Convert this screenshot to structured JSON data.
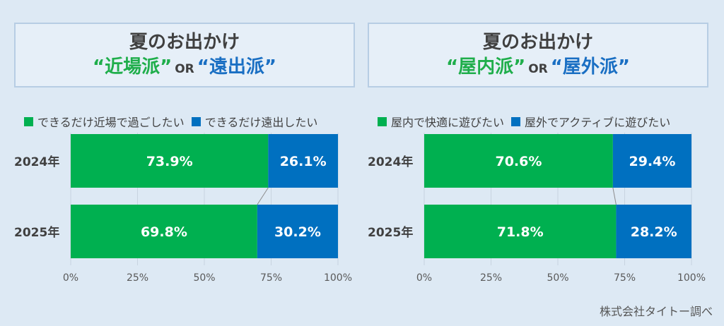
{
  "source_note": "株式会社タイトー調べ",
  "colors": {
    "green": "#00b050",
    "blue": "#0070c0",
    "title_green": "#1fae4b",
    "title_blue": "#1a6fc3",
    "text": "#404040"
  },
  "chart_data": [
    {
      "type": "bar",
      "orientation": "horizontal-stacked-100",
      "title_line1": "夏のお出かけ",
      "title_cat_a": "“近場派”",
      "title_or": "OR",
      "title_cat_b": "“遠出派”",
      "categories": [
        "2024年",
        "2025年"
      ],
      "series": [
        {
          "name": "できるだけ近場で過ごしたい",
          "values": [
            73.9,
            69.8
          ],
          "labels": [
            "73.9%",
            "69.8%"
          ]
        },
        {
          "name": "できるだけ遠出したい",
          "values": [
            26.1,
            30.2
          ],
          "labels": [
            "26.1%",
            "30.2%"
          ]
        }
      ],
      "xlim": [
        0,
        100
      ],
      "xticks": [
        "0%",
        "25%",
        "50%",
        "75%",
        "100%"
      ],
      "legend_position": "top"
    },
    {
      "type": "bar",
      "orientation": "horizontal-stacked-100",
      "title_line1": "夏のお出かけ",
      "title_cat_a": "“屋内派”",
      "title_or": "OR",
      "title_cat_b": "“屋外派”",
      "categories": [
        "2024年",
        "2025年"
      ],
      "series": [
        {
          "name": "屋内で快適に遊びたい",
          "values": [
            70.6,
            71.8
          ],
          "labels": [
            "70.6%",
            "71.8%"
          ]
        },
        {
          "name": "屋外でアクティブに遊びたい",
          "values": [
            29.4,
            28.2
          ],
          "labels": [
            "29.4%",
            "28.2%"
          ]
        }
      ],
      "xlim": [
        0,
        100
      ],
      "xticks": [
        "0%",
        "25%",
        "50%",
        "75%",
        "100%"
      ],
      "legend_position": "top"
    }
  ]
}
